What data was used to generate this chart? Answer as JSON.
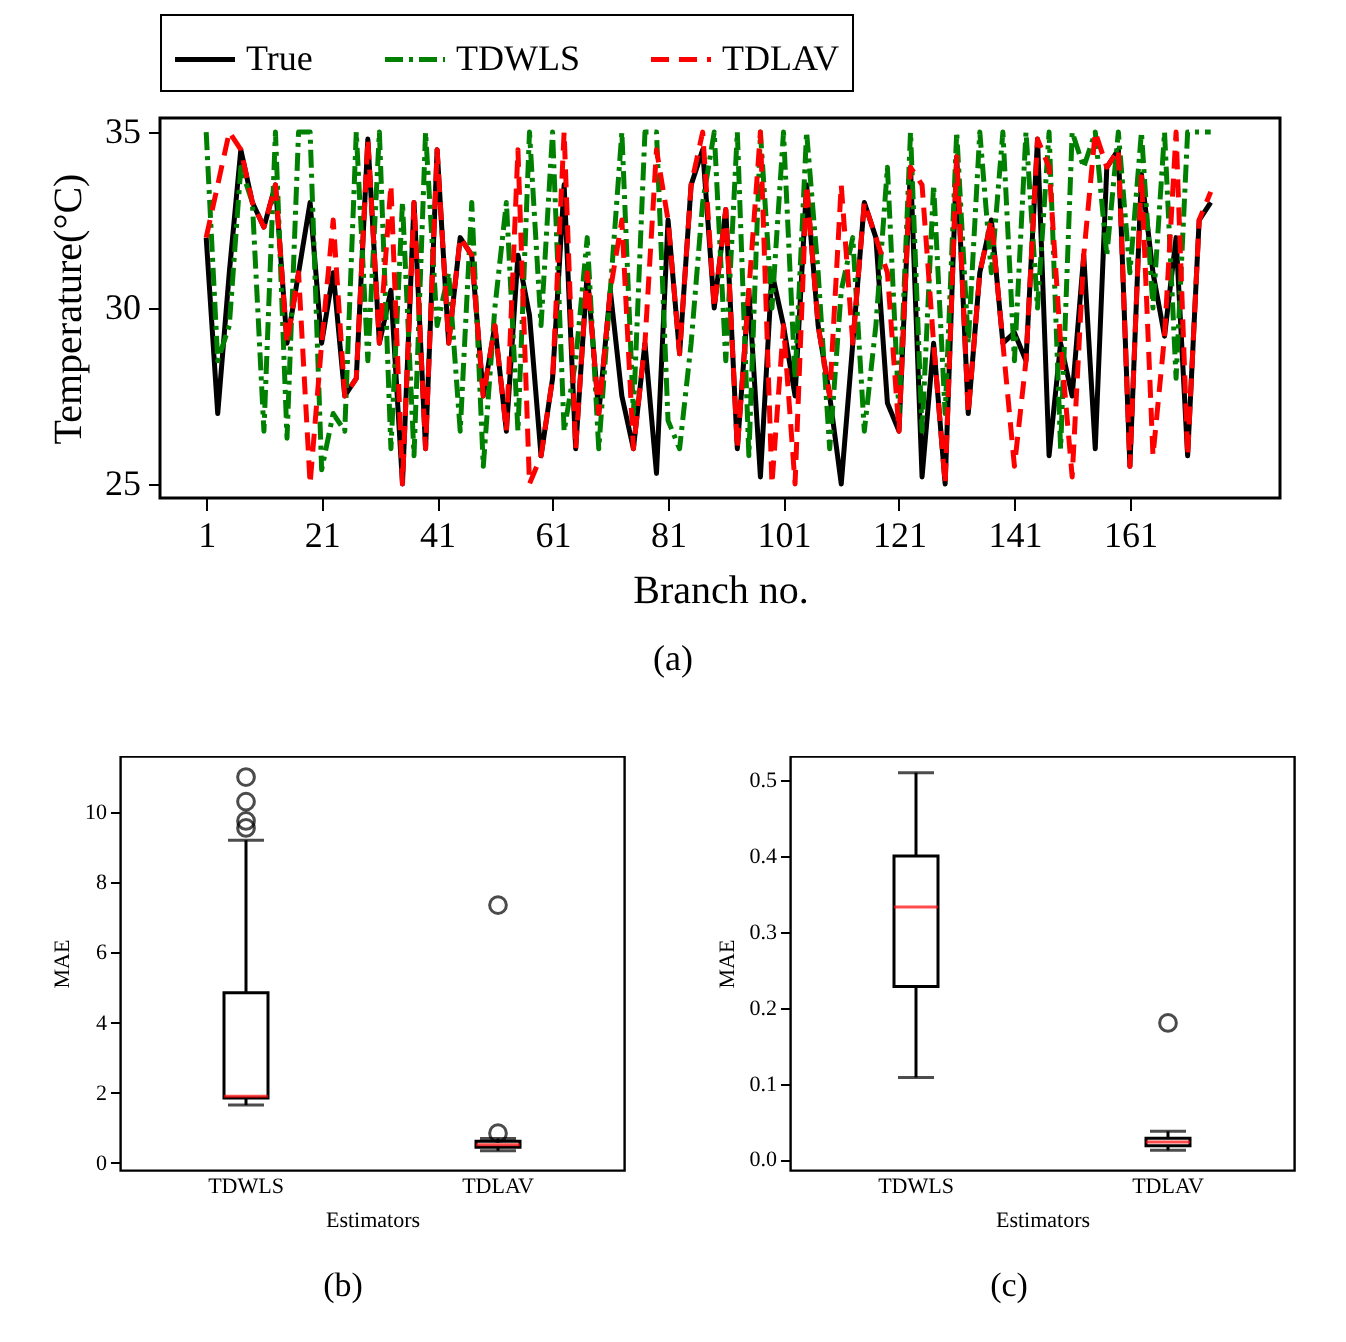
{
  "chart_data": [
    {
      "type": "line",
      "xlabel": "Branch no.",
      "ylabel": "Temperature(°C)",
      "annotations": [
        "(a)"
      ],
      "legend": "top",
      "marker": "none",
      "xlim": [
        -7,
        187
      ],
      "ylim": [
        24.6,
        35.4
      ],
      "xticks": [
        1,
        21,
        41,
        61,
        81,
        101,
        121,
        141,
        161
      ],
      "yticks": [
        25,
        30,
        35
      ],
      "x": [
        1,
        3,
        5,
        7,
        9,
        11,
        13,
        15,
        17,
        19,
        21,
        23,
        25,
        27,
        29,
        31,
        33,
        35,
        37,
        39,
        41,
        43,
        45,
        47,
        49,
        51,
        53,
        55,
        57,
        59,
        61,
        63,
        65,
        67,
        69,
        71,
        73,
        75,
        77,
        79,
        81,
        83,
        85,
        87,
        89,
        91,
        93,
        95,
        97,
        99,
        101,
        103,
        105,
        107,
        109,
        111,
        113,
        115,
        117,
        119,
        121,
        123,
        125,
        127,
        129,
        131,
        133,
        135,
        137,
        139,
        141,
        143,
        145,
        147,
        149,
        151,
        153,
        155,
        157,
        159,
        161,
        163,
        165,
        167,
        169,
        171,
        173,
        175
      ],
      "series": [
        {
          "name": "True",
          "color": "#000000",
          "line_style": "solid",
          "values": [
            32,
            27,
            31,
            34.5,
            33,
            32.3,
            33.5,
            29,
            31,
            33,
            29,
            31,
            27.5,
            28,
            34.8,
            29,
            30.5,
            25,
            33,
            26,
            34.5,
            29,
            32,
            31.5,
            27.5,
            29.5,
            26.5,
            31.5,
            29.8,
            25.8,
            28,
            33.5,
            26,
            31,
            27,
            30.5,
            27.5,
            26,
            29,
            25.3,
            32.5,
            28.7,
            33.5,
            34.5,
            30,
            32.8,
            26,
            30.5,
            25.2,
            31,
            29.5,
            27.5,
            33.5,
            29.5,
            27.5,
            25,
            29,
            33,
            32,
            27.3,
            26.5,
            34,
            25.2,
            29,
            25,
            34.3,
            27,
            31,
            32.5,
            29,
            29.3,
            28.5,
            34.8,
            25.8,
            29,
            27.5,
            31.5,
            26,
            34,
            34.5,
            25.5,
            33.8,
            31,
            29.2,
            32,
            25.8,
            32.5,
            33
          ]
        },
        {
          "name": "TDWLS",
          "color": "#008000",
          "line_style": "dashdot",
          "values": [
            35,
            28.5,
            29.5,
            34,
            33,
            26.5,
            35,
            26.3,
            35,
            35,
            25.4,
            27,
            26.5,
            35,
            28.5,
            35,
            26,
            33,
            25.8,
            35,
            29.5,
            31,
            26.5,
            33,
            25.5,
            30,
            33,
            26.5,
            35,
            29.5,
            35,
            26.5,
            28.5,
            32,
            26,
            30.5,
            35,
            27,
            35,
            35,
            26.8,
            26,
            29,
            33,
            35,
            28.5,
            35,
            25.8,
            35,
            30,
            35,
            28,
            35,
            31,
            26,
            30.5,
            32,
            26.5,
            29.5,
            34,
            27,
            35,
            26.5,
            33.5,
            27,
            35,
            29,
            35,
            31,
            35,
            28.5,
            35,
            30,
            35,
            26,
            35,
            34,
            35,
            31.5,
            35,
            31,
            35,
            30,
            35,
            28,
            35,
            35,
            35
          ]
        },
        {
          "name": "TDLAV",
          "color": "#ff0000",
          "line_style": "dashed",
          "values": [
            32,
            33.5,
            35,
            34.5,
            33,
            32.3,
            33.5,
            29,
            31,
            25,
            29,
            32.5,
            27.5,
            28,
            34.8,
            29,
            33.5,
            25,
            33,
            26,
            34.5,
            29,
            32,
            31.5,
            27.5,
            29.5,
            26.5,
            34.5,
            25,
            25.8,
            28,
            35,
            26,
            31,
            27,
            30.5,
            32.5,
            26,
            29,
            34.5,
            32.5,
            28.7,
            33.5,
            35,
            30,
            32.8,
            26,
            30.5,
            35,
            25,
            29.5,
            25,
            33.5,
            29.5,
            27.5,
            33.5,
            29,
            33,
            32,
            31,
            26.5,
            34,
            33.5,
            29,
            25,
            34.3,
            27,
            31,
            32.5,
            29,
            25.5,
            28.5,
            34.8,
            34,
            29,
            25.2,
            31.5,
            35,
            34,
            34.5,
            25.5,
            33.8,
            25.8,
            29.2,
            35,
            25.8,
            32.5,
            33.3
          ]
        }
      ]
    },
    {
      "type": "box",
      "xlabel": "Estimators",
      "ylabel": "MAE",
      "annotations": [
        "(b)"
      ],
      "categories": [
        "TDWLS",
        "TDLAV"
      ],
      "ylim": [
        -0.2,
        11.6
      ],
      "yticks": [
        0,
        2,
        4,
        6,
        8,
        10
      ],
      "boxes": [
        {
          "low": 1.65,
          "q1": 1.85,
          "median": 1.9,
          "q3": 4.85,
          "high": 9.2,
          "outliers": [
            9.55,
            9.75,
            10.3,
            11
          ]
        },
        {
          "low": 0.35,
          "q1": 0.45,
          "median": 0.52,
          "q3": 0.62,
          "high": 0.7,
          "outliers": [
            0.85,
            7.35
          ]
        }
      ]
    },
    {
      "type": "box",
      "xlabel": "Estimators",
      "ylabel": "MAE",
      "annotations": [
        "(c)"
      ],
      "categories": [
        "TDWLS",
        "TDLAV"
      ],
      "ylim": [
        -0.014,
        0.532
      ],
      "yticks": [
        {
          "value": 0,
          "label": "0.0"
        },
        0.1,
        0.2,
        0.3,
        0.4,
        0.5
      ],
      "boxes": [
        {
          "low": 0.108,
          "q1": 0.228,
          "median": 0.333,
          "q3": 0.4,
          "high": 0.51
        },
        {
          "low": 0.012,
          "q1": 0.018,
          "median": 0.023,
          "q3": 0.028,
          "high": 0.037,
          "outliers": [
            0.18
          ]
        }
      ]
    }
  ]
}
